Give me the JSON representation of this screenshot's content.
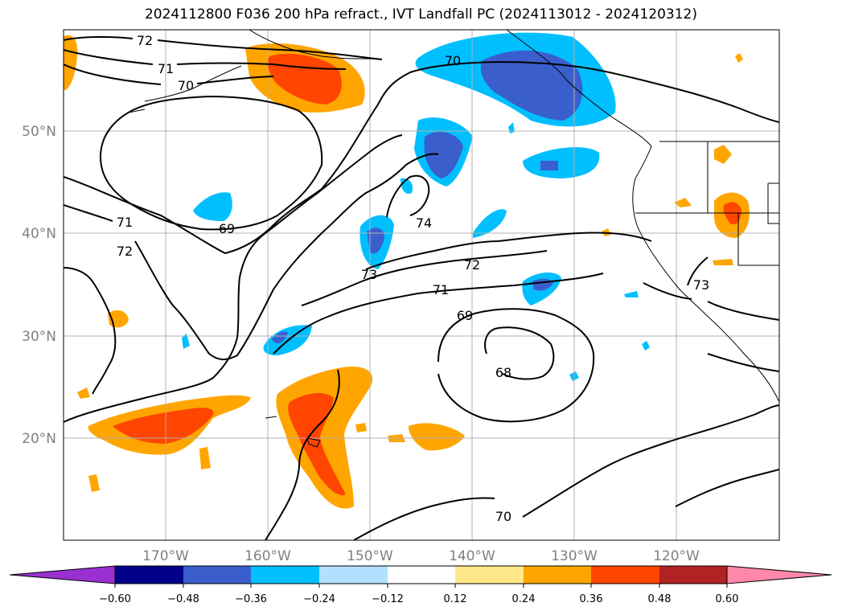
{
  "title": "2024112800 F036 200 hPa refract., IVT Landfall PC (2024113012 - 2024120312)",
  "map": {
    "lat_labels": [
      "50°N",
      "40°N",
      "30°N",
      "20°N"
    ],
    "lon_labels": [
      "170°W",
      "160°W",
      "150°W",
      "140°W",
      "130°W",
      "120°W"
    ],
    "contour_labels": [
      "72",
      "71",
      "70",
      "71",
      "72",
      "69",
      "74",
      "73",
      "72",
      "71",
      "69",
      "68",
      "70",
      "70",
      "73"
    ],
    "contour_line_color": "#000000",
    "gridline_color": "#b0b0b0"
  },
  "colorbar": {
    "ticks": [
      "−0.60",
      "−0.48",
      "−0.36",
      "−0.24",
      "−0.12",
      "0.12",
      "0.24",
      "0.36",
      "0.48",
      "0.60"
    ],
    "colors": [
      "#9b30d0",
      "#00008b",
      "#3a5fcd",
      "#00bfff",
      "#b0e2ff",
      "#ffffff",
      "#ffe88a",
      "#ffa500",
      "#ff4500",
      "#b22222",
      "#ff88aa"
    ]
  }
}
